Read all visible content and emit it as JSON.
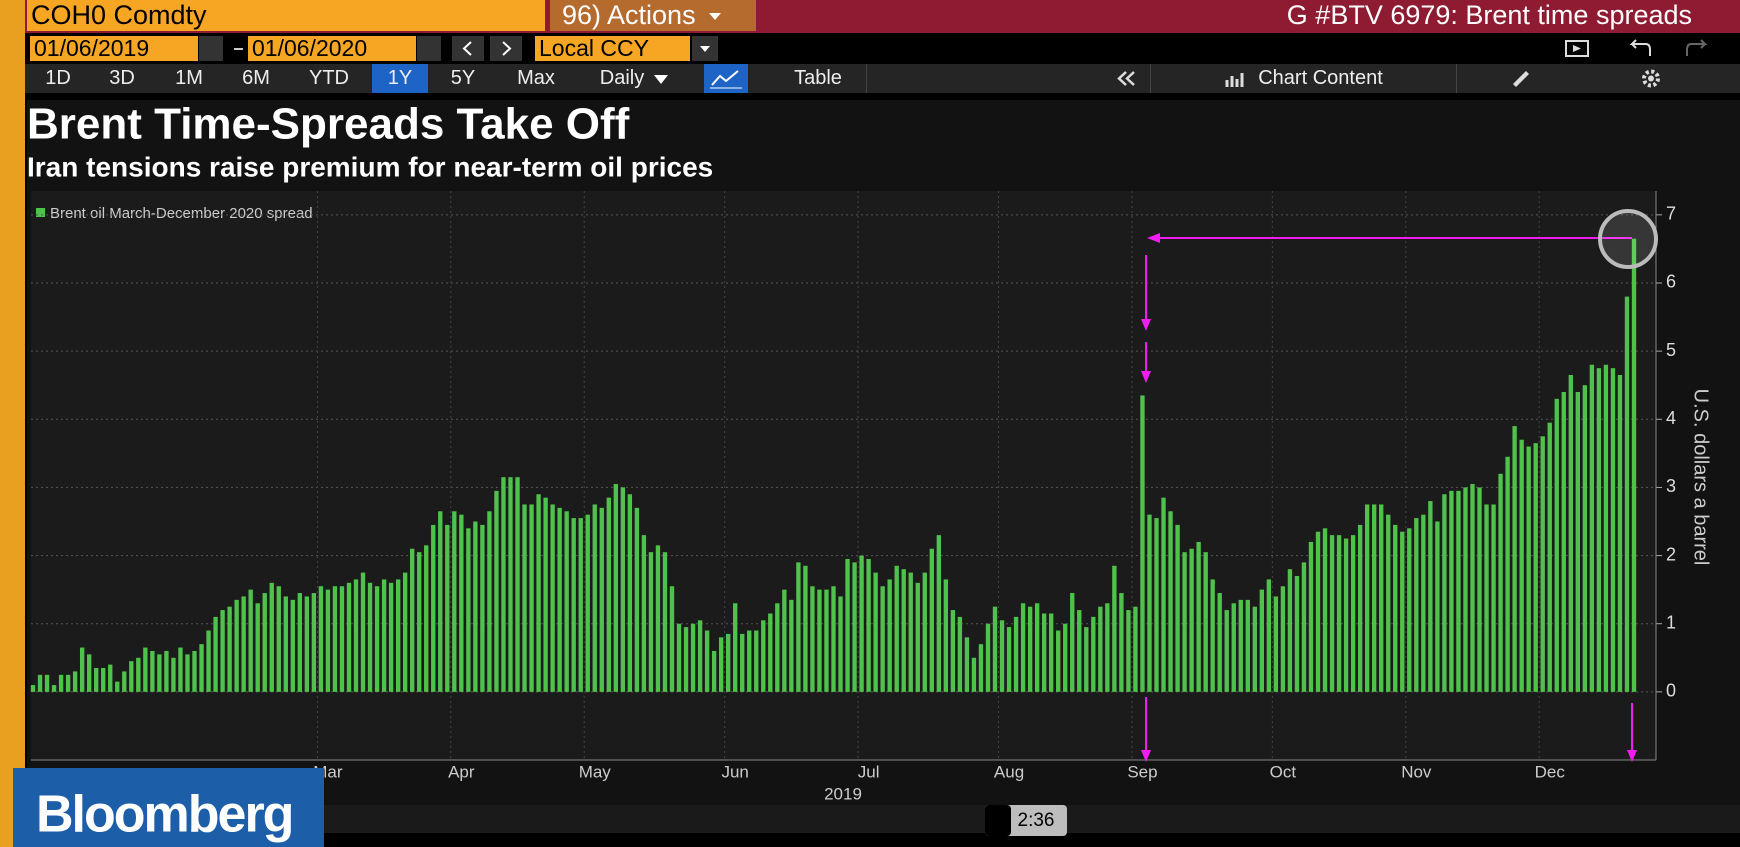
{
  "toolbar": {
    "security": "COH0 Comdty",
    "actions": "96) Actions",
    "window_title": "G #BTV 6979: Brent time spreads",
    "start_date": "01/06/2019",
    "end_date": "01/06/2020",
    "currency": "Local CCY",
    "periods": [
      "1D",
      "3D",
      "1M",
      "6M",
      "YTD",
      "1Y",
      "5Y",
      "Max"
    ],
    "frequency": "Daily",
    "table": "Table",
    "chart_content": "Chart Content"
  },
  "chart_data": {
    "type": "bar",
    "title": "Brent Time-Spreads Take Off",
    "subtitle": "Iran tensions raise premium for near-term oil prices",
    "y_label": "U.S. dollars a barrel",
    "x_label": "2019",
    "categories": [
      null,
      null,
      null,
      null,
      null,
      null,
      null,
      null,
      null,
      null,
      null,
      null,
      null,
      null,
      null,
      null,
      null,
      null,
      null,
      null,
      null,
      null,
      null,
      null,
      null,
      null,
      null,
      null,
      null,
      null,
      null,
      null,
      null,
      null,
      null,
      null,
      null,
      null,
      null,
      null,
      null,
      null,
      "Mar",
      null,
      null,
      null,
      null,
      null,
      null,
      null,
      null,
      null,
      null,
      null,
      null,
      null,
      null,
      null,
      null,
      null,
      null,
      "Apr",
      null,
      null,
      null,
      null,
      null,
      null,
      null,
      null,
      null,
      null,
      null,
      null,
      null,
      null,
      null,
      null,
      null,
      null,
      "May",
      null,
      null,
      null,
      null,
      null,
      null,
      null,
      null,
      null,
      null,
      null,
      null,
      null,
      null,
      null,
      null,
      null,
      null,
      null,
      "Jun",
      null,
      null,
      null,
      null,
      null,
      null,
      null,
      null,
      null,
      null,
      null,
      null,
      null,
      null,
      null,
      null,
      null,
      null,
      "Jul",
      null,
      null,
      null,
      null,
      null,
      null,
      null,
      null,
      null,
      null,
      null,
      null,
      null,
      null,
      null,
      null,
      null,
      null,
      null,
      "Aug",
      null,
      null,
      null,
      null,
      null,
      null,
      null,
      null,
      null,
      null,
      null,
      null,
      null,
      null,
      null,
      null,
      null,
      null,
      "Sep",
      null,
      null,
      null,
      null,
      null,
      null,
      null,
      null,
      null,
      null,
      null,
      null,
      null,
      null,
      null,
      null,
      null,
      null,
      null,
      "Oct",
      null,
      null,
      null,
      null,
      null,
      null,
      null,
      null,
      null,
      null,
      null,
      null,
      null,
      null,
      null,
      null,
      null,
      null,
      "Nov",
      null,
      null,
      null,
      null,
      null,
      null,
      null,
      null,
      null,
      null,
      null,
      null,
      null,
      null,
      null,
      null,
      null,
      null,
      "Dec",
      null,
      null,
      null,
      null,
      null,
      null,
      null,
      null,
      null,
      null,
      null,
      null
    ],
    "series": [
      {
        "name": "Brent oil March-December 2020 spread",
        "color": "#4fc24c",
        "values": [
          0.1,
          0.25,
          0.25,
          0.1,
          0.25,
          0.25,
          0.3,
          0.65,
          0.55,
          0.35,
          0.35,
          0.4,
          0.15,
          0.3,
          0.45,
          0.5,
          0.65,
          0.6,
          0.55,
          0.6,
          0.5,
          0.65,
          0.55,
          0.6,
          0.7,
          0.9,
          1.1,
          1.2,
          1.25,
          1.35,
          1.4,
          1.5,
          1.3,
          1.45,
          1.6,
          1.55,
          1.4,
          1.35,
          1.45,
          1.4,
          1.45,
          1.55,
          1.5,
          1.55,
          1.55,
          1.6,
          1.65,
          1.75,
          1.6,
          1.55,
          1.65,
          1.6,
          1.65,
          1.75,
          2.1,
          2.05,
          2.15,
          2.45,
          2.65,
          2.45,
          2.65,
          2.6,
          2.4,
          2.5,
          2.45,
          2.65,
          2.95,
          3.15,
          3.15,
          3.15,
          2.75,
          2.75,
          2.9,
          2.85,
          2.75,
          2.7,
          2.65,
          2.55,
          2.55,
          2.6,
          2.75,
          2.7,
          2.85,
          3.05,
          3.0,
          2.9,
          2.7,
          2.3,
          2.05,
          2.15,
          2.05,
          1.55,
          1.0,
          0.95,
          1.0,
          1.05,
          0.9,
          0.6,
          0.8,
          0.85,
          1.3,
          0.85,
          0.9,
          0.9,
          1.05,
          1.15,
          1.3,
          1.5,
          1.35,
          1.9,
          1.85,
          1.55,
          1.5,
          1.5,
          1.55,
          1.4,
          1.95,
          1.9,
          2.0,
          1.95,
          1.75,
          1.55,
          1.65,
          1.85,
          1.8,
          1.75,
          1.6,
          1.75,
          2.1,
          2.3,
          1.65,
          1.2,
          1.1,
          0.8,
          0.5,
          0.7,
          1.0,
          1.25,
          1.05,
          0.95,
          1.1,
          1.3,
          1.25,
          1.3,
          1.15,
          1.15,
          0.9,
          1.0,
          1.45,
          1.2,
          0.95,
          1.1,
          1.25,
          1.3,
          1.85,
          1.45,
          1.2,
          1.25,
          4.35,
          2.6,
          2.55,
          2.85,
          2.65,
          2.45,
          2.05,
          2.1,
          2.2,
          2.05,
          1.65,
          1.45,
          1.2,
          1.3,
          1.35,
          1.35,
          1.25,
          1.5,
          1.65,
          1.4,
          1.55,
          1.8,
          1.7,
          1.9,
          2.2,
          2.35,
          2.4,
          2.3,
          2.3,
          2.25,
          2.3,
          2.45,
          2.75,
          2.75,
          2.75,
          2.6,
          2.45,
          2.35,
          2.4,
          2.55,
          2.6,
          2.8,
          2.5,
          2.9,
          2.95,
          2.95,
          3.0,
          3.05,
          3.0,
          2.75,
          2.75,
          3.2,
          3.45,
          3.9,
          3.7,
          3.6,
          3.65,
          3.75,
          3.95,
          4.3,
          4.4,
          4.65,
          4.4,
          4.5,
          4.8,
          4.75,
          4.8,
          4.75,
          4.65,
          5.8,
          6.65
        ]
      }
    ],
    "ylim": [
      -1,
      7.35
    ],
    "yticks": [
      0,
      1,
      2,
      3,
      4,
      5,
      6,
      7
    ],
    "grid": true
  },
  "overlay": {
    "logo": "Bloomberg",
    "timestamp": "2:36"
  }
}
